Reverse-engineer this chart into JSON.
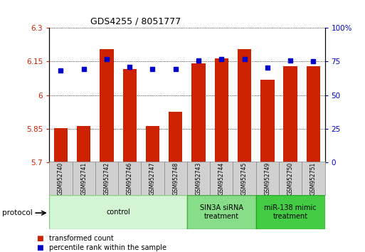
{
  "title": "GDS4255 / 8051777",
  "samples": [
    "GSM952740",
    "GSM952741",
    "GSM952742",
    "GSM952746",
    "GSM952747",
    "GSM952748",
    "GSM952743",
    "GSM952744",
    "GSM952745",
    "GSM952749",
    "GSM952750",
    "GSM952751"
  ],
  "red_bars": [
    5.852,
    5.862,
    6.205,
    6.115,
    5.862,
    5.925,
    6.142,
    6.165,
    6.205,
    6.07,
    6.13,
    6.13
  ],
  "blue_dots_pct": [
    68.5,
    69.5,
    76.5,
    71.0,
    69.5,
    69.5,
    75.5,
    76.5,
    76.5,
    70.5,
    75.5,
    75.0
  ],
  "ylim_left": [
    5.7,
    6.3
  ],
  "ylim_right": [
    0,
    100
  ],
  "yticks_left": [
    5.7,
    5.85,
    6.0,
    6.15,
    6.3
  ],
  "yticks_right": [
    0,
    25,
    50,
    75,
    100
  ],
  "ytick_labels_left": [
    "5.7",
    "5.85",
    "6",
    "6.15",
    "6.3"
  ],
  "ytick_labels_right": [
    "0",
    "25",
    "50",
    "75",
    "100%"
  ],
  "bar_color": "#cc2200",
  "dot_color": "#0000cc",
  "bar_bottom": 5.7,
  "groups": [
    {
      "label": "control",
      "start": 0,
      "end": 6,
      "color": "#d4f5d4",
      "edge": "#88cc88"
    },
    {
      "label": "SIN3A siRNA\ntreatment",
      "start": 6,
      "end": 9,
      "color": "#88dd88",
      "edge": "#44aa44"
    },
    {
      "label": "miR-138 mimic\ntreatment",
      "start": 9,
      "end": 12,
      "color": "#44cc44",
      "edge": "#22aa22"
    }
  ],
  "protocol_label": "protocol",
  "legend": [
    {
      "label": "transformed count",
      "color": "#cc2200"
    },
    {
      "label": "percentile rank within the sample",
      "color": "#0000cc"
    }
  ],
  "tick_label_color_left": "#cc2200",
  "tick_label_color_right": "#0000cc"
}
